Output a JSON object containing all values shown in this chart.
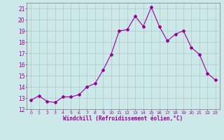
{
  "x": [
    0,
    1,
    2,
    3,
    4,
    5,
    6,
    7,
    8,
    9,
    10,
    11,
    12,
    13,
    14,
    15,
    16,
    17,
    18,
    19,
    20,
    21,
    22,
    23
  ],
  "y": [
    12.8,
    13.2,
    12.7,
    12.6,
    13.1,
    13.1,
    13.3,
    14.0,
    14.3,
    15.5,
    16.9,
    19.0,
    19.1,
    20.3,
    19.4,
    21.1,
    19.4,
    18.1,
    18.7,
    19.0,
    17.5,
    16.9,
    15.2,
    14.6
  ],
  "line_color": "#990099",
  "marker": "D",
  "marker_size": 2,
  "bg_color": "#cce8e8",
  "grid_color": "#b0c8c8",
  "xlabel": "Windchill (Refroidissement éolien,°C)",
  "xlabel_color": "#990099",
  "tick_color": "#990099",
  "ylim": [
    12,
    21.5
  ],
  "xlim": [
    -0.5,
    23.5
  ],
  "yticks": [
    12,
    13,
    14,
    15,
    16,
    17,
    18,
    19,
    20,
    21
  ],
  "xticks": [
    0,
    1,
    2,
    3,
    4,
    5,
    6,
    7,
    8,
    9,
    10,
    11,
    12,
    13,
    14,
    15,
    16,
    17,
    18,
    19,
    20,
    21,
    22,
    23
  ],
  "figsize": [
    3.2,
    2.0
  ],
  "dpi": 100
}
